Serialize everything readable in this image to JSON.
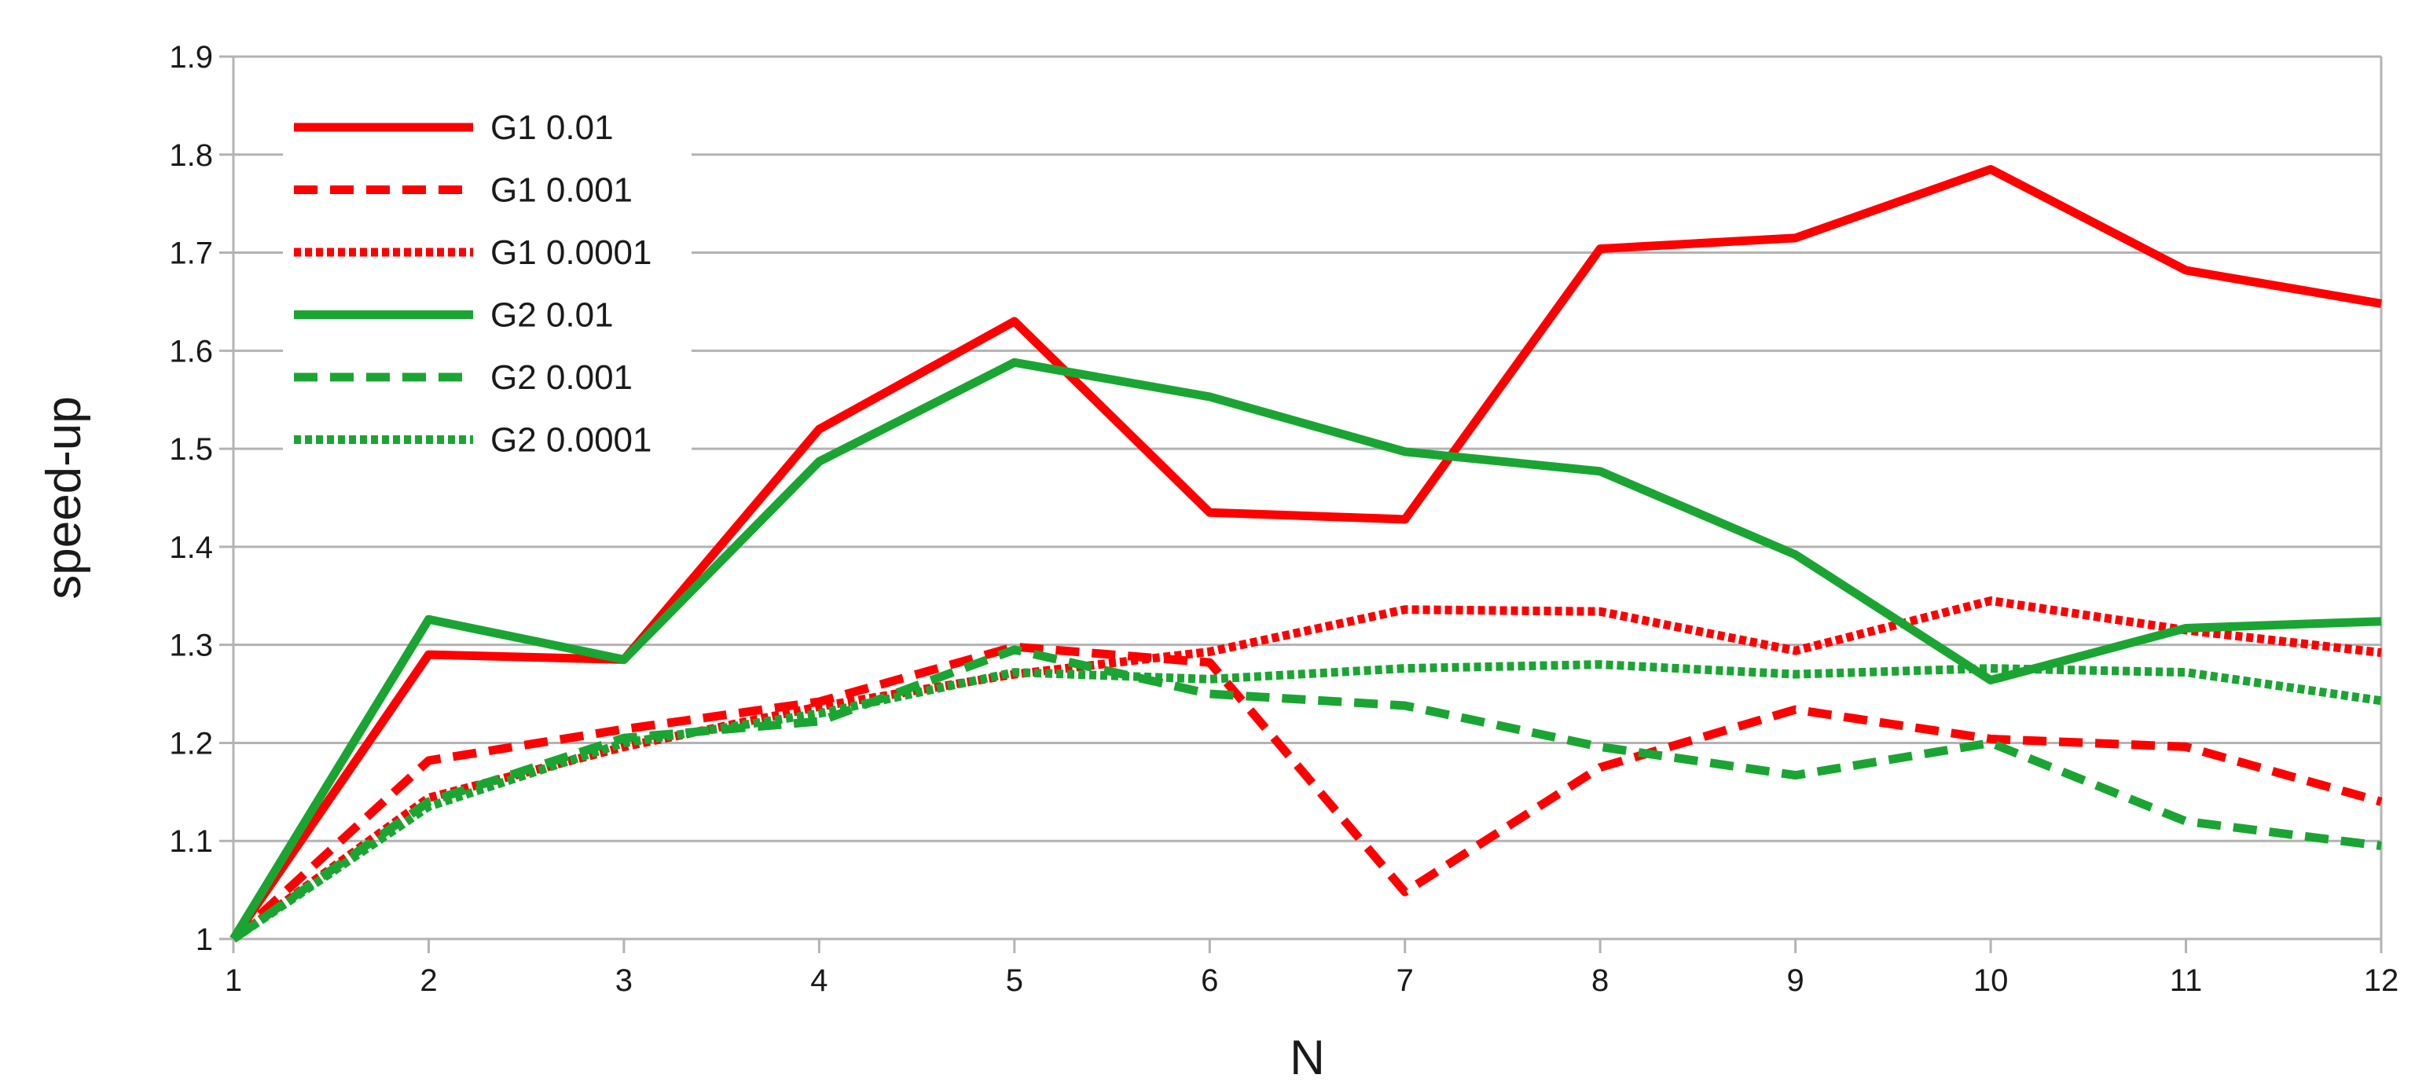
{
  "chart_data": {
    "type": "line",
    "title": "",
    "xlabel": "N",
    "ylabel": "speed-up",
    "x": [
      1,
      2,
      3,
      4,
      5,
      6,
      7,
      8,
      9,
      10,
      11,
      12
    ],
    "xlim": [
      1,
      12
    ],
    "ylim": [
      1,
      1.9
    ],
    "yticks": [
      1,
      1.1,
      1.2,
      1.3,
      1.4,
      1.5,
      1.6,
      1.7,
      1.8,
      1.9
    ],
    "ytick_labels": [
      "1",
      "1.1",
      "1.2",
      "1.3",
      "1.4",
      "1.5",
      "1.6",
      "1.7",
      "1.8",
      "1.9"
    ],
    "xtick_labels": [
      "1",
      "2",
      "3",
      "4",
      "5",
      "6",
      "7",
      "8",
      "9",
      "10",
      "11",
      "12"
    ],
    "grid": true,
    "legend_position": "top-left",
    "series": [
      {
        "name": "G1 0.01",
        "color": "#ff0000",
        "dash": "solid",
        "values": [
          1.0,
          1.29,
          1.285,
          1.52,
          1.63,
          1.435,
          1.428,
          1.704,
          1.715,
          1.785,
          1.682,
          1.648
        ]
      },
      {
        "name": "G1 0.001",
        "color": "#ff0000",
        "dash": "dashed",
        "values": [
          1.0,
          1.182,
          1.214,
          1.242,
          1.298,
          1.282,
          1.048,
          1.175,
          1.234,
          1.204,
          1.196,
          1.14
        ]
      },
      {
        "name": "G1 0.0001",
        "color": "#ff0000",
        "dash": "dotted",
        "values": [
          1.0,
          1.144,
          1.196,
          1.237,
          1.27,
          1.293,
          1.336,
          1.334,
          1.294,
          1.345,
          1.315,
          1.292
        ]
      },
      {
        "name": "G2 0.01",
        "color": "#1aa532",
        "dash": "solid",
        "values": [
          1.0,
          1.326,
          1.285,
          1.487,
          1.588,
          1.553,
          1.497,
          1.477,
          1.392,
          1.264,
          1.317,
          1.324
        ]
      },
      {
        "name": "G2 0.001",
        "color": "#1aa532",
        "dash": "dashed",
        "values": [
          1.0,
          1.14,
          1.205,
          1.222,
          1.295,
          1.25,
          1.238,
          1.196,
          1.167,
          1.2,
          1.12,
          1.095
        ]
      },
      {
        "name": "G2 0.0001",
        "color": "#1aa532",
        "dash": "dotted",
        "values": [
          1.0,
          1.135,
          1.2,
          1.23,
          1.272,
          1.265,
          1.276,
          1.28,
          1.27,
          1.276,
          1.272,
          1.243
        ]
      }
    ]
  }
}
